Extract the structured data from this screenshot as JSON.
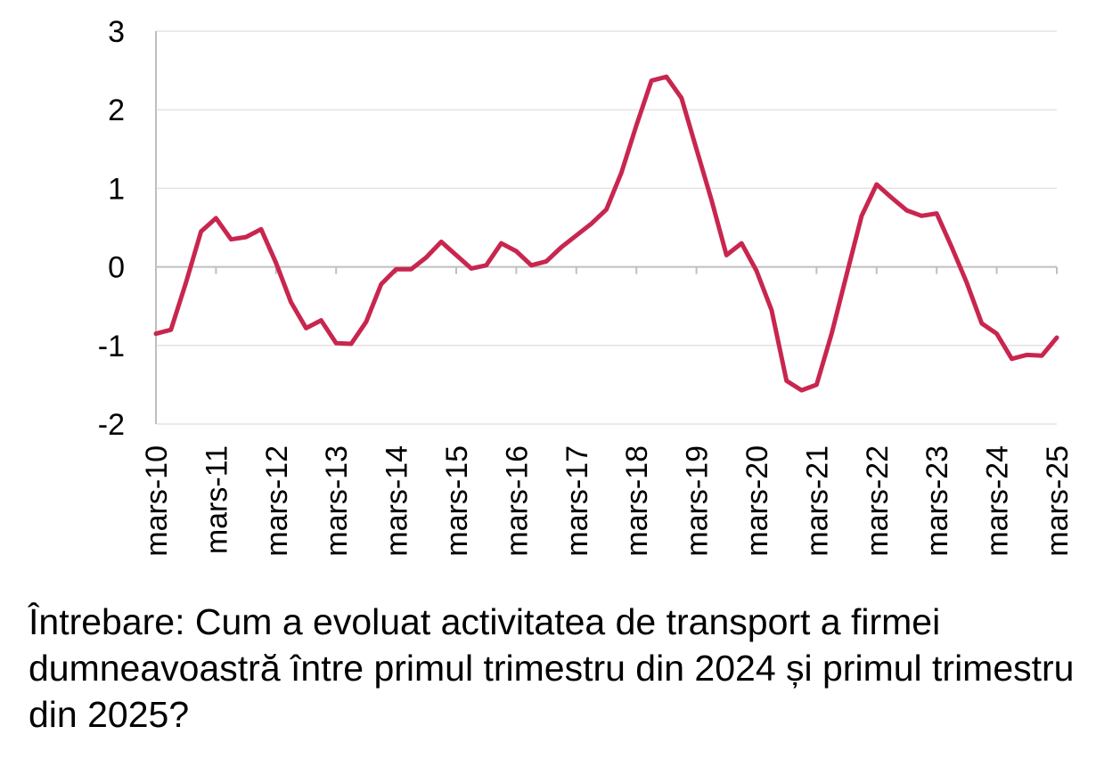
{
  "chart_data": {
    "type": "line",
    "title": "",
    "xlabel": "",
    "ylabel": "",
    "ylim": [
      -2,
      3
    ],
    "yticks": [
      3,
      2,
      1,
      0,
      -1,
      -2
    ],
    "x_tick_labels": [
      "mars-10",
      "mars-11",
      "mars-12",
      "mars-13",
      "mars-14",
      "mars-15",
      "mars-16",
      "mars-17",
      "mars-18",
      "mars-19",
      "mars-20",
      "mars-21",
      "mars-22",
      "mars-23",
      "mars-24",
      "mars-25"
    ],
    "grid": true,
    "legend": "none",
    "series": [
      {
        "color": "#c8264f",
        "values": [
          -0.85,
          -0.8,
          -0.2,
          0.45,
          0.62,
          0.35,
          0.38,
          0.48,
          0.05,
          -0.45,
          -0.78,
          -0.68,
          -0.97,
          -0.98,
          -0.7,
          -0.22,
          -0.03,
          -0.03,
          0.12,
          0.32,
          0.15,
          -0.02,
          0.02,
          0.3,
          0.2,
          0.02,
          0.07,
          0.25,
          0.4,
          0.55,
          0.73,
          1.2,
          1.8,
          2.37,
          2.42,
          2.15,
          1.5,
          0.85,
          0.15,
          0.3,
          -0.05,
          -0.55,
          -1.45,
          -1.57,
          -1.5,
          -0.85,
          -0.1,
          0.65,
          1.05,
          0.88,
          0.72,
          0.65,
          0.68,
          0.25,
          -0.2,
          -0.72,
          -0.85,
          -1.17,
          -1.12,
          -1.13,
          -0.9
        ]
      }
    ]
  },
  "caption": "Întrebare: Cum a evoluat activitatea de transport a firmei dumneavoastră între primul trimestru din 2024 și primul trimestru din 2025?"
}
